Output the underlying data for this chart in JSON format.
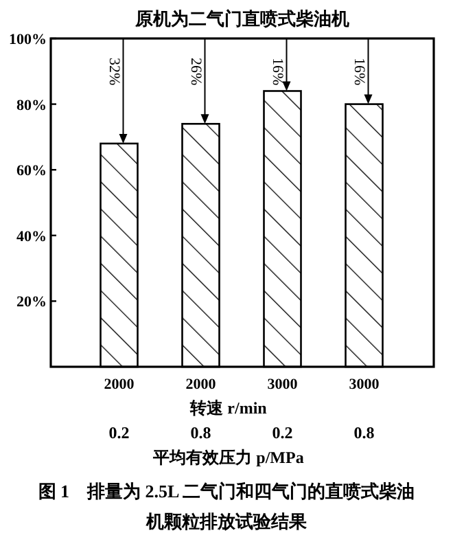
{
  "chart_data": {
    "type": "bar",
    "title": "原机为二气门直喷式柴油机",
    "categories": [
      "2000",
      "2000",
      "3000",
      "3000"
    ],
    "values": [
      68,
      74,
      84,
      80
    ],
    "color": "#000000",
    "ylim": [
      0,
      100
    ],
    "yticks": [
      {
        "value": 20,
        "label": "20%"
      },
      {
        "value": 40,
        "label": "40%"
      },
      {
        "value": 60,
        "label": "60%"
      },
      {
        "value": 80,
        "label": "80%"
      },
      {
        "value": 100,
        "label": "100%"
      }
    ],
    "xlabel": "转速 r/min",
    "annotations": [
      "32%",
      "26%",
      "16%",
      "16%",
      "0.2",
      "0.8",
      "0.2",
      "0.8",
      "平均有效压力 p/MPa",
      "图 1　排量为 2.5L 二气门和四气门的直喷式柴油机颗粒排放试验结果"
    ],
    "grid": false
  }
}
